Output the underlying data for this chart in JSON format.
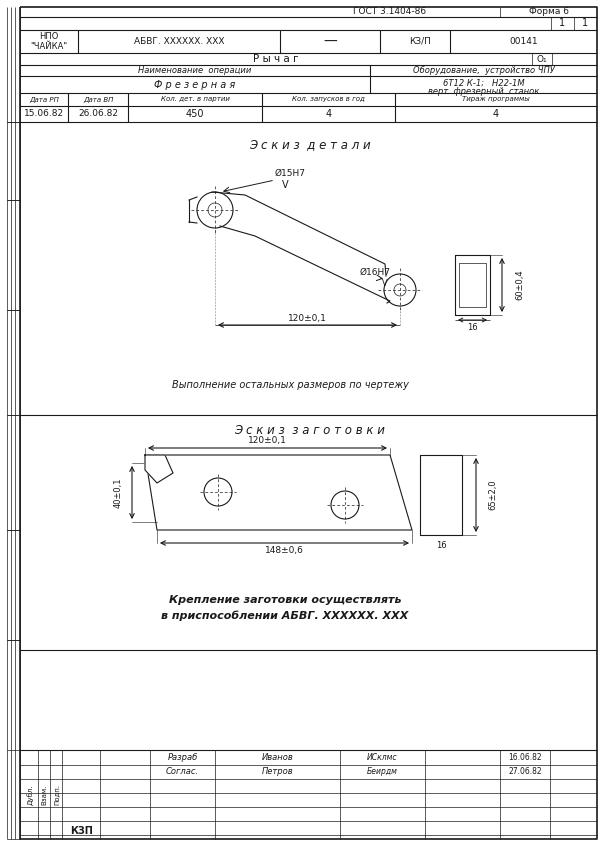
{
  "title_gost": "ГОСТ 3.1404-86",
  "title_forma": "Форма 6",
  "npo": "НПО\n\"ЧАЙКА\"",
  "abvg": "АБВГ. XXXXXX. XXX",
  "dash": "—",
  "kzp": "КЗ/П",
  "num1": "00141",
  "page1": "1",
  "page2": "1",
  "detail_name": "Р ы ч а г",
  "o1": "О₁",
  "op_label": "Наименование  операции",
  "equipment_label": "Оборудование,  устройство ЧПУ",
  "op_name": "Ф р е з е р н а я",
  "equipment_name1": "6Т12 К-1;   Н22-1М",
  "equipment_name2": "верт. фрезерный  станок",
  "col_date_rp": "Дата РП",
  "col_date_bp": "Дата ВП",
  "col_qty": "Кол. дет. в партии",
  "col_launches": "Кол. запусков в год",
  "col_tirazh": "Тираж программы",
  "val_date_rp": "15.06.82",
  "val_date_bp": "26.06.82",
  "val_qty": "450",
  "val_launches": "4",
  "val_tirazh": "4",
  "eskiz_detail": "Э с к и з  д е т а л и",
  "d15": "Ø15Н7",
  "d16": "Ø16Н7",
  "surf_v": "V",
  "dim120": "120±0,1",
  "dim60": "60±0,4",
  "dim16r": "16",
  "note_detail": "Выполнение остальных размеров по чертежу",
  "eskiz_blank": "Э с к и з  з а г о т о в к и",
  "dim120b": "120±0,1",
  "dim40": "40±0,1",
  "dim148": "148±0,6",
  "dim16b": "16",
  "dim65": "65±2,0",
  "note_blank1": "Крепление заготовки осуществлять",
  "note_blank2": "в приспособлении АБВГ. XXXXXX. XXX",
  "razrab": "Разраб",
  "soglas": "Соглас.",
  "ivanov": "Иванов",
  "petrov": "Петров",
  "sign1": "ИСклмс",
  "sign2": "Беирдм",
  "date_sign1": "16.06.82",
  "date_sign2": "27.06.82",
  "kzp_bottom": "КЗП",
  "dubl": "Дубл.",
  "vzam": "Взам.",
  "podp": "Подп.",
  "bg": "#ffffff",
  "line_color": "#1a1a1a"
}
